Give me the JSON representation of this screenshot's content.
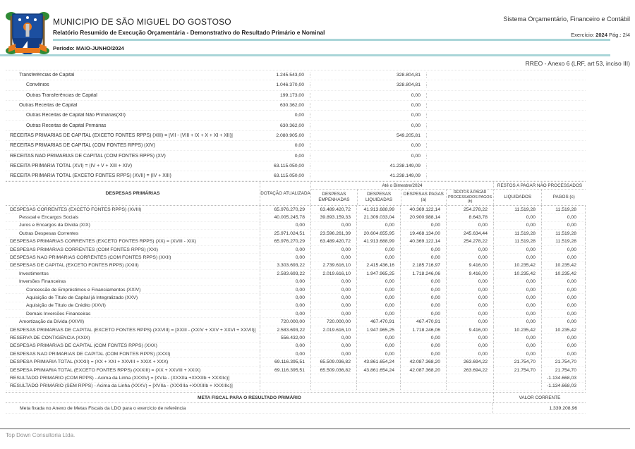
{
  "header": {
    "municipality": "MUNICIPIO DE SÃO MIGUEL DO GOSTOSO",
    "report_title": "Relatório Resumido de Execução Orçamentária - Demonstrativo do Resultado Primário e Nominal",
    "period": "Período: MAIO-JUNHO/2024",
    "system_name": "Sistema Orçamentário, Financeiro e Contábil",
    "exercise_label": "Exercício:",
    "exercise_year": "2024",
    "page_label": "Pág.: 2/4",
    "annex": "RREO -  Anexo 6  (LRF, art 53, inciso III)"
  },
  "receitas": {
    "rows": [
      {
        "label": "Transferências de Capital",
        "indent": 1,
        "previsao": "1.245.543,00",
        "realizada": "328.804,81"
      },
      {
        "label": "Convênios",
        "indent": 2,
        "previsao": "1.046.370,00",
        "realizada": "328.804,81"
      },
      {
        "label": "Outras Transferências de Capital",
        "indent": 2,
        "previsao": "199.173,00",
        "realizada": "0,00"
      },
      {
        "label": "Outras Receitas de Capital",
        "indent": 1,
        "previsao": "630.362,00",
        "realizada": "0,00"
      },
      {
        "label": "Outras Receitas de Capital Não Primárias(XII)",
        "indent": 2,
        "previsao": "0,00",
        "realizada": "0,00"
      },
      {
        "label": "Outras Receitas de Capital Primárias",
        "indent": 2,
        "previsao": "630.362,00",
        "realizada": "0,00"
      },
      {
        "label": "RECEITAS PRIMÁRIAS DE CAPITAL (EXCETO FONTES RPPS) (XIII) = [VII - (VIII + IX + X + XI + XII)]",
        "indent": 0,
        "previsao": "2.080.905,00",
        "realizada": "549.205,81"
      },
      {
        "label": "RECEITAS PRIMÁRIAS DE CAPITAL (COM FONTES RPPS) (XIV)",
        "indent": 0,
        "previsao": "0,00",
        "realizada": "0,00"
      },
      {
        "label": "RECEITAS NÃO PRIMÁRIAS DE CAPITAL (COM FONTES RPPS) (XV)",
        "indent": 0,
        "previsao": "0,00",
        "realizada": "0,00"
      },
      {
        "label": "RECEITA PRIMÁRIA TOTAL (XVI) = (IV + V + XIII + XIV)",
        "indent": 0,
        "previsao": "63.115.050,00",
        "realizada": "41.238.149,09"
      },
      {
        "label": "RECEITA PRIMÁRIA TOTAL (EXCETO FONTES RPPS) (XVII) = (IV + XIII)",
        "indent": 0,
        "previsao": "63.115.050,00",
        "realizada": "41.238.149,09"
      }
    ]
  },
  "despesas": {
    "headers": {
      "label": "DESPESAS PRIMÁRIAS",
      "dotacao": "DOTAÇÃO ATUALIZADA",
      "group_bimestre": "Até o Bimestre/2024",
      "empenhadas": "DESPESAS EMPENHADAS",
      "liquidadas": "DESPESAS LIQUIDADAS",
      "pagas": "DESPESAS PAGAS (a)",
      "restos_processados": "RESTOS A PAGAR PROCESSADOS PAGOS (b)",
      "group_restos": "RESTOS A PAGAR NÃO PROCESSADOS",
      "liquidados": "LIQUIDADOS",
      "pagos": "PAGOS (c)"
    },
    "rows": [
      {
        "label": "DESPESAS CORRENTES (EXCETO FONTES RPPS) (XVIII)",
        "indent": 0,
        "values": [
          "65.976.270,29",
          "63.489.420,72",
          "41.913.688,99",
          "40.369.122,14",
          "254.278,22",
          "11.519,28",
          "11.519,28"
        ]
      },
      {
        "label": "Pessoal e Encargos Sociais",
        "indent": 1,
        "values": [
          "40.005.245,78",
          "39.893.159,33",
          "21.309.033,04",
          "20.900.988,14",
          "8.643,78",
          "0,00",
          "0,00"
        ]
      },
      {
        "label": "Juros e Encargos da Dívida (XIX)",
        "indent": 1,
        "values": [
          "0,00",
          "0,00",
          "0,00",
          "0,00",
          "0,00",
          "0,00",
          "0,00"
        ]
      },
      {
        "label": "Outras Despesas Correntes",
        "indent": 1,
        "values": [
          "25.971.024,51",
          "23.596.261,39",
          "20.604.655,95",
          "19.468.134,00",
          "245.634,44",
          "11.519,28",
          "11.519,28"
        ]
      },
      {
        "label": "DESPESAS PRIMÁRIAS CORRENTES (EXCETO FONTES RPPS) (XX) = (XVIII - XIX)",
        "indent": 0,
        "values": [
          "65.976.270,29",
          "63.489.420,72",
          "41.913.688,99",
          "40.369.122,14",
          "254.278,22",
          "11.519,28",
          "11.519,28"
        ]
      },
      {
        "label": "DESPESAS PRIMÁRIAS CORRENTES (COM FONTES RPPS) (XXI)",
        "indent": 0,
        "values": [
          "0,00",
          "0,00",
          "0,00",
          "0,00",
          "0,00",
          "0,00",
          "0,00"
        ]
      },
      {
        "label": "DESPESAS NÃO PRIMÁRIAS CORRENTES (COM FONTES RPPS) (XXII)",
        "indent": 0,
        "values": [
          "0,00",
          "0,00",
          "0,00",
          "0,00",
          "0,00",
          "0,00",
          "0,00"
        ]
      },
      {
        "label": "DESPESAS DE CAPITAL (EXCETO FONTES RPPS) (XXIII)",
        "indent": 0,
        "values": [
          "3.303.693,22",
          "2.739.616,10",
          "2.415.436,16",
          "2.185.716,97",
          "9.416,00",
          "10.235,42",
          "10.235,42"
        ]
      },
      {
        "label": "Investimentos",
        "indent": 1,
        "values": [
          "2.583.693,22",
          "2.019.616,10",
          "1.947.965,25",
          "1.718.246,06",
          "9.416,00",
          "10.235,42",
          "10.235,42"
        ]
      },
      {
        "label": "Inversões Financeiras",
        "indent": 1,
        "values": [
          "0,00",
          "0,00",
          "0,00",
          "0,00",
          "0,00",
          "0,00",
          "0,00"
        ]
      },
      {
        "label": "Concessão de Empréstimos e Financiamentos (XXIV)",
        "indent": 2,
        "values": [
          "0,00",
          "0,00",
          "0,00",
          "0,00",
          "0,00",
          "0,00",
          "0,00"
        ]
      },
      {
        "label": "Aquisição de Título de Capital já Integralizado (XXV)",
        "indent": 2,
        "values": [
          "0,00",
          "0,00",
          "0,00",
          "0,00",
          "0,00",
          "0,00",
          "0,00"
        ]
      },
      {
        "label": "Aquisição de Título de Crédito (XXVI)",
        "indent": 2,
        "values": [
          "0,00",
          "0,00",
          "0,00",
          "0,00",
          "0,00",
          "0,00",
          "0,00"
        ]
      },
      {
        "label": "Demais Inversões Financeiras",
        "indent": 2,
        "values": [
          "0,00",
          "0,00",
          "0,00",
          "0,00",
          "0,00",
          "0,00",
          "0,00"
        ]
      },
      {
        "label": "Amortização da Dívida (XXVII)",
        "indent": 1,
        "values": [
          "720.000,00",
          "720.000,00",
          "467.470,91",
          "467.470,91",
          "0,00",
          "0,00",
          "0,00"
        ]
      },
      {
        "label": "DESPESAS PRIMÁRIAS DE CAPITAL (EXCETO FONTES RPPS) (XXVIII) = [XXIII - (XXIV + XXV + XXVI + XXVII)]",
        "indent": 0,
        "values": [
          "2.583.693,22",
          "2.019.616,10",
          "1.947.965,25",
          "1.718.246,06",
          "9.416,00",
          "10.235,42",
          "10.235,42"
        ]
      },
      {
        "label": "RESERVA DE CONTIGÊNCIA (XXIX)",
        "indent": 0,
        "values": [
          "556.432,00",
          "0,00",
          "0,00",
          "0,00",
          "0,00",
          "0,00",
          "0,00"
        ]
      },
      {
        "label": "DESPESAS PRIMÁRIAS DE CAPITAL (COM FONTES RPPS) (XXX)",
        "indent": 0,
        "values": [
          "0,00",
          "0,00",
          "0,00",
          "0,00",
          "0,00",
          "0,00",
          "0,00"
        ]
      },
      {
        "label": "DESPESAS NÃO PRIMÁRIAS DE CAPITAL (COM FONTES RPPS) (XXXI)",
        "indent": 0,
        "values": [
          "0,00",
          "0,00",
          "0,00",
          "0,00",
          "0,00",
          "0,00",
          "0,00"
        ]
      },
      {
        "label": "DESPESA PRIMÁRIA TOTAL (XXXII) = (XX + XXI + XXVIII + XXIX + XXX)",
        "indent": 0,
        "values": [
          "69.116.395,51",
          "65.509.036,82",
          "43.861.654,24",
          "42.087.368,20",
          "263.694,22",
          "21.754,70",
          "21.754,70"
        ]
      },
      {
        "label": "DESPESA PRIMÁRIA TOTAL (EXCETO FONTES RPPS) (XXXIII) = (XX + XXVIII + XXIX)",
        "indent": 0,
        "values": [
          "69.116.395,51",
          "65.509.036,82",
          "43.861.654,24",
          "42.087.368,20",
          "263.694,22",
          "21.754,70",
          "21.754,70"
        ]
      },
      {
        "label": "RESULTADO PRIMÁRIO (COM RPPS) - Acima da Linha (XXXIV) = [XVIa - (XXXIIa +XXXIIb + XXXIIc)]",
        "indent": 0,
        "values": [
          "",
          "",
          "",
          "",
          "",
          "",
          "-1.134.668,03"
        ]
      },
      {
        "label": "RESULTADO PRIMÁRIO (SEM RPPS) - Acima da Linha (XXXV) = [XVIIa - (XXXIIIa +XXXIIIb + XXXIIIc)]",
        "indent": 0,
        "values": [
          "",
          "",
          "",
          "",
          "",
          "",
          "-1.134.668,03"
        ]
      }
    ]
  },
  "meta_fiscal": {
    "header_left": "META FISCAL PARA O RESULTADO PRIMÁRIO",
    "header_right": "VALOR CORRENTE",
    "row_label": "Meta fixada no Anexo de Metas Fiscais da LDO para o exercício de referência",
    "row_value": "1.339.208,96"
  },
  "footer": {
    "company": "Top Down Consultoria Ltda."
  },
  "colors": {
    "accent_line": "#a9d5d8",
    "logo_blue": "#1c4fa0",
    "logo_orange": "#e8791e",
    "logo_green": "#2f8a35"
  }
}
